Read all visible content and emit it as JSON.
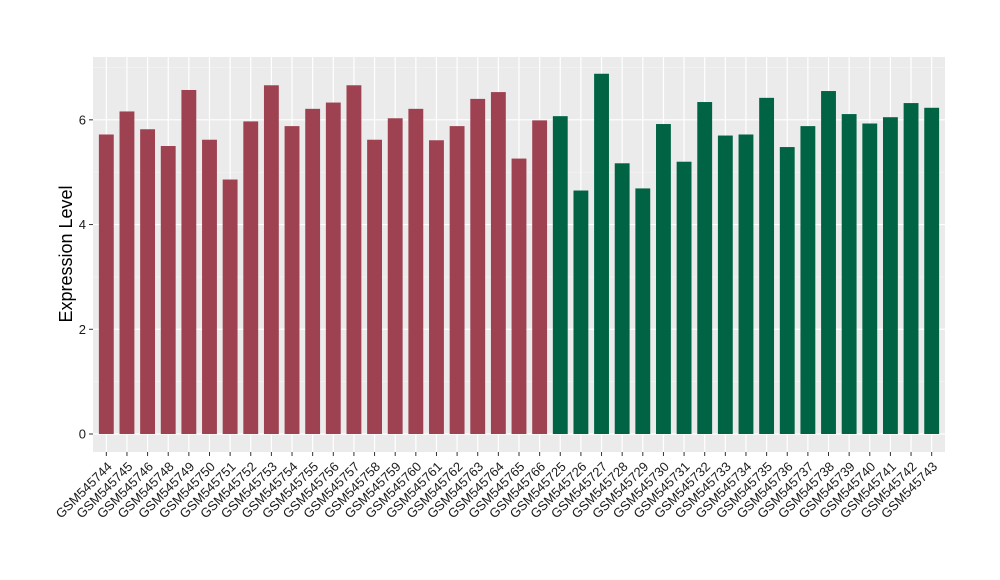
{
  "chart_data": {
    "type": "bar",
    "xlabel": "",
    "ylabel": "Expression Level",
    "ylim": [
      0,
      7.2
    ],
    "yticks": [
      0,
      2,
      4,
      6
    ],
    "grid": true,
    "background": "#ebebeb",
    "categories": [
      "GSM545744",
      "GSM545745",
      "GSM545746",
      "GSM545748",
      "GSM545749",
      "GSM545750",
      "GSM545751",
      "GSM545752",
      "GSM545753",
      "GSM545754",
      "GSM545755",
      "GSM545756",
      "GSM545757",
      "GSM545758",
      "GSM545759",
      "GSM545760",
      "GSM545761",
      "GSM545762",
      "GSM545763",
      "GSM545764",
      "GSM545765",
      "GSM545766",
      "GSM545725",
      "GSM545726",
      "GSM545727",
      "GSM545728",
      "GSM545729",
      "GSM545730",
      "GSM545731",
      "GSM545732",
      "GSM545733",
      "GSM545734",
      "GSM545735",
      "GSM545736",
      "GSM545737",
      "GSM545738",
      "GSM545739",
      "GSM545740",
      "GSM545741",
      "GSM545742",
      "GSM545743"
    ],
    "values": [
      5.72,
      6.16,
      5.82,
      5.5,
      6.57,
      5.62,
      4.86,
      5.97,
      6.66,
      5.88,
      6.21,
      6.33,
      6.66,
      5.62,
      6.03,
      6.21,
      5.61,
      5.88,
      6.4,
      6.53,
      5.26,
      5.99,
      6.07,
      4.65,
      6.88,
      5.17,
      4.69,
      5.92,
      5.2,
      6.34,
      5.7,
      5.72,
      6.42,
      5.48,
      5.88,
      6.55,
      6.11,
      5.93,
      6.05,
      6.32,
      6.23
    ],
    "group_sizes": [
      22,
      19
    ],
    "group_colors": [
      "#9e4151",
      "#006344"
    ]
  }
}
